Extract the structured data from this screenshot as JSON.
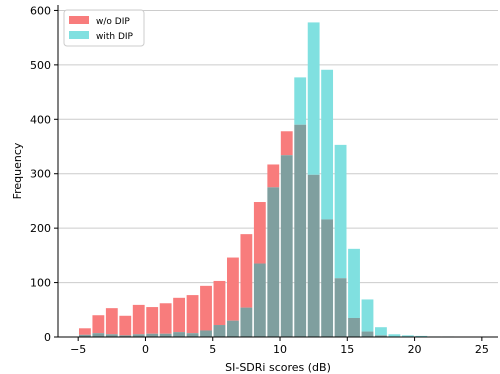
{
  "chart_data": {
    "type": "bar",
    "xlabel": "SI-SDRi scores (dB)",
    "ylabel": "Frequency",
    "xlim": [
      -6.5,
      26.2
    ],
    "ylim": [
      0,
      610
    ],
    "xticks": [
      -5,
      0,
      5,
      10,
      15,
      20,
      25
    ],
    "xtick_labels": [
      "−5",
      "0",
      "5",
      "10",
      "15",
      "20",
      "25"
    ],
    "yticks": [
      0,
      100,
      200,
      300,
      400,
      500,
      600
    ],
    "ytick_labels": [
      "0",
      "100",
      "200",
      "300",
      "400",
      "500",
      "600"
    ],
    "grid": "horizontal",
    "legend_position": "top-left",
    "bin_width": 1,
    "bin_centers": [
      -4.5,
      -3.5,
      -2.5,
      -1.5,
      -0.5,
      0.5,
      1.5,
      2.5,
      3.5,
      4.5,
      5.5,
      6.5,
      7.5,
      8.5,
      9.5,
      10.5,
      11.5,
      12.5,
      13.5,
      14.5,
      15.5,
      16.5,
      17.5,
      18.5,
      19.5,
      20.5,
      21.5,
      22.5,
      23.5,
      24.5
    ],
    "series": [
      {
        "name": "w/o DIP",
        "color": "#f87c7c",
        "values": [
          16,
          40,
          53,
          39,
          59,
          55,
          62,
          72,
          77,
          94,
          103,
          146,
          189,
          248,
          317,
          378,
          390,
          298,
          216,
          108,
          35,
          10,
          3,
          1,
          1,
          0,
          0,
          0,
          0,
          0
        ]
      },
      {
        "name": "with DIP",
        "color": "#80e0e0",
        "values": [
          4,
          7,
          5,
          3,
          5,
          6,
          6,
          9,
          7,
          12,
          22,
          30,
          54,
          135,
          275,
          334,
          477,
          578,
          491,
          353,
          162,
          69,
          18,
          5,
          3,
          2,
          1,
          1,
          0,
          0
        ]
      }
    ],
    "overlap_color": "#7f9f9f"
  }
}
